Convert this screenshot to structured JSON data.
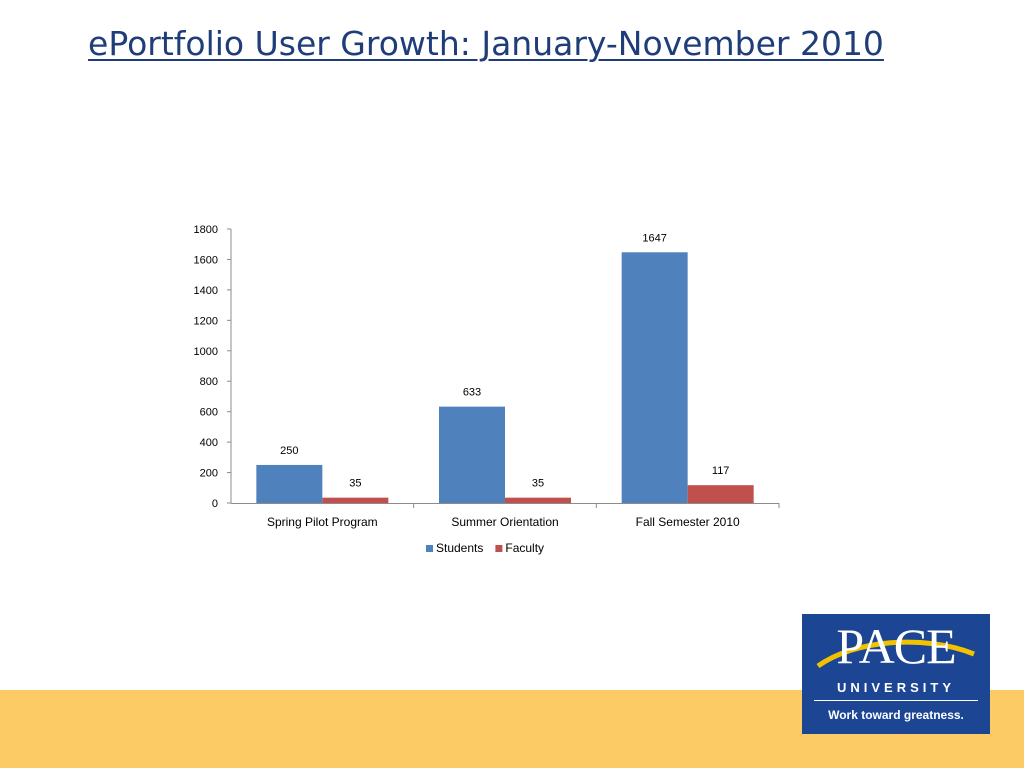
{
  "slide": {
    "title": "ePortfolio User Growth: January-November 2010"
  },
  "logo": {
    "wordmark": "PACE",
    "university": "UNIVERSITY",
    "tagline": "Work toward greatness."
  },
  "colors": {
    "students": "#4f81bd",
    "faculty": "#c0504d",
    "footer": "#fdcb66",
    "logo_bg": "#1c4593",
    "title": "#1f3d79"
  },
  "chart_data": {
    "type": "bar",
    "categories": [
      "Spring Pilot Program",
      "Summer Orientation",
      "Fall Semester 2010"
    ],
    "series": [
      {
        "name": "Students",
        "values": [
          250,
          633,
          1647
        ]
      },
      {
        "name": "Faculty",
        "values": [
          35,
          35,
          117
        ]
      }
    ],
    "ylim": [
      0,
      1800
    ],
    "yticks": [
      0,
      200,
      400,
      600,
      800,
      1000,
      1200,
      1400,
      1600,
      1800
    ],
    "data_labels": true,
    "legend": "bottom",
    "grid": false
  }
}
